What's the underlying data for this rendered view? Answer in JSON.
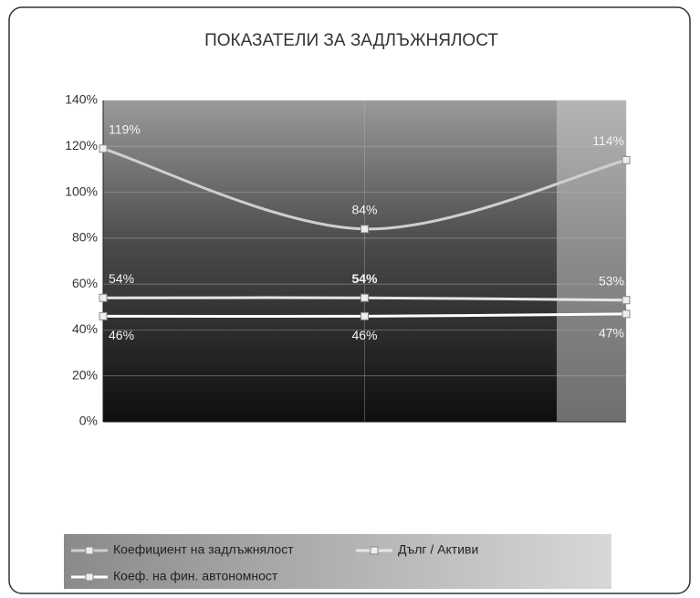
{
  "chart_data": {
    "type": "line",
    "title": "ПОКАЗАТЕЛИ ЗА ЗАДЛЪЖНЯЛОСТ",
    "categories": [
      null,
      null,
      null
    ],
    "series": [
      {
        "name": "Коефициент на задлъжнялост",
        "color": "#cfcfcf",
        "values": [
          119,
          84,
          114
        ],
        "value_labels": [
          "119%",
          "84%",
          "114%"
        ]
      },
      {
        "name": "Дълг / Активи",
        "color": "#e6e6e6",
        "values": [
          54,
          54,
          53
        ],
        "value_labels": [
          "54%",
          "54%",
          "53%"
        ]
      },
      {
        "name": "Коеф. на фин. автономност",
        "color": "#ffffff",
        "values": [
          46,
          46,
          47
        ],
        "value_labels": [
          "46%",
          "46%",
          "47%"
        ]
      }
    ],
    "ylim": [
      0,
      140
    ],
    "yticks": [
      {
        "value": 0,
        "label": "0%"
      },
      {
        "value": 20,
        "label": "20%"
      },
      {
        "value": 40,
        "label": "40%"
      },
      {
        "value": 60,
        "label": "60%"
      },
      {
        "value": 80,
        "label": "80%"
      },
      {
        "value": 100,
        "label": "100%"
      },
      {
        "value": 120,
        "label": "120%"
      },
      {
        "value": 140,
        "label": "140%"
      }
    ],
    "grid": true,
    "legend": "bottom"
  }
}
